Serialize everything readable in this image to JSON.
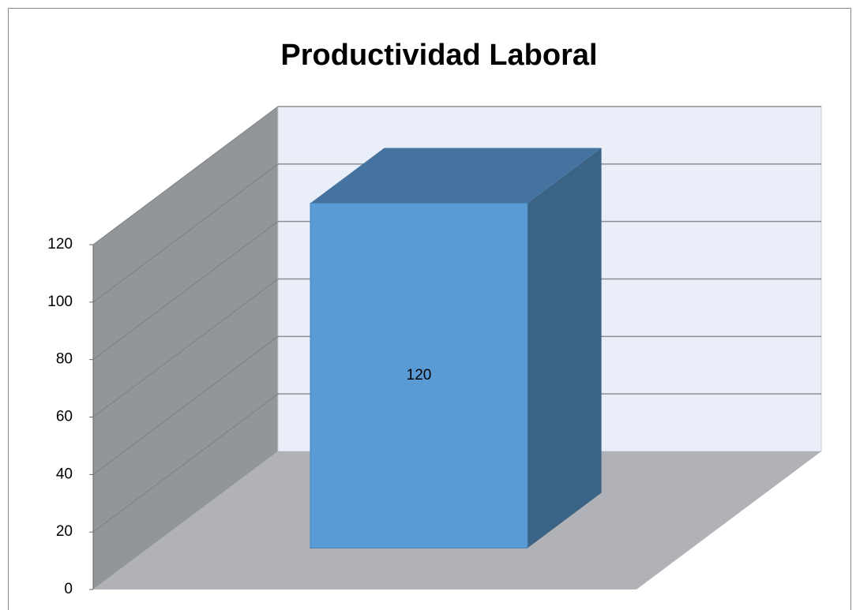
{
  "chart_data": {
    "type": "bar",
    "title": "Productividad Laboral",
    "categories": [
      null
    ],
    "values": [
      120
    ],
    "colors": {
      "front": "#5b9bd5",
      "top": "#44739f",
      "side": "#3a6386"
    },
    "ylim": [
      0,
      120
    ],
    "yticks": [
      0,
      20,
      40,
      60,
      80,
      100,
      120
    ],
    "grid": true
  }
}
